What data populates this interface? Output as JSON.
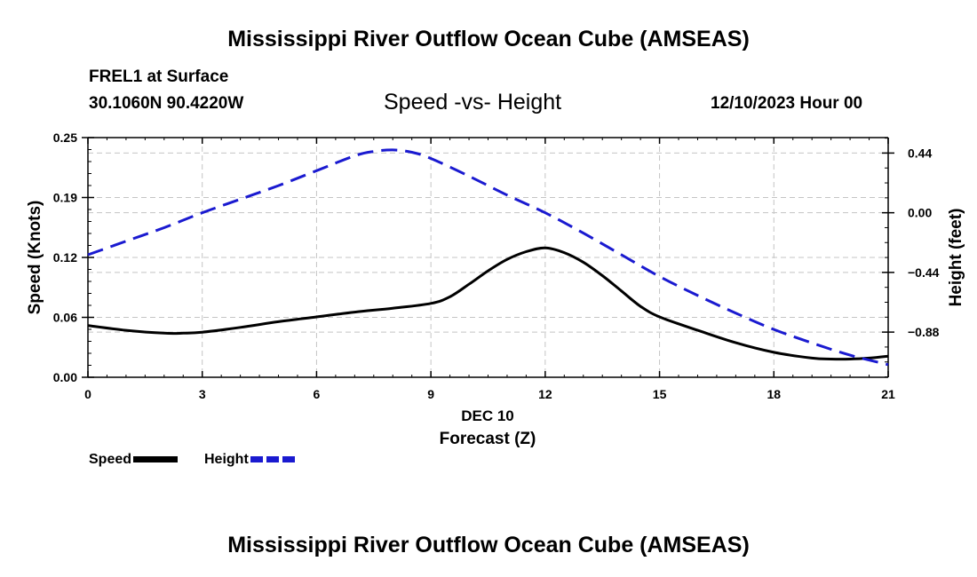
{
  "header": {
    "title": "Mississippi River Outflow Ocean Cube (AMSEAS)",
    "station": "FREL1 at Surface",
    "coords": "30.1060N  90.4220W",
    "subtitle": "Speed -vs- Height",
    "datetime": "12/10/2023 Hour 00"
  },
  "footer": {
    "title": "Mississippi River Outflow Ocean Cube (AMSEAS)"
  },
  "legend": {
    "speed_label": "Speed",
    "height_label": "Height"
  },
  "colors": {
    "speed": "#000000",
    "height": "#1a1ad0",
    "grid": "#c4c4c4"
  },
  "chart_data": {
    "type": "line",
    "xlabel": "Forecast (Z)",
    "xsublabel": "DEC 10",
    "xlim": [
      0,
      21
    ],
    "xticks": [
      0,
      3,
      6,
      9,
      12,
      15,
      18,
      21
    ],
    "xtick_labels": [
      "0",
      "3",
      "6",
      "9",
      "12",
      "15",
      "18",
      "21"
    ],
    "ylabel_left": "Speed (Knots)",
    "ylim_left": [
      0,
      0.25
    ],
    "yticks_left": [
      0,
      0.0625,
      0.125,
      0.1875,
      0.25
    ],
    "ytick_labels_left": [
      "0.00",
      "0.06",
      "0.12",
      "0.19",
      "0.25"
    ],
    "ylabel_right": "Height (feet)",
    "ylim_right": [
      -1.213,
      0.554
    ],
    "yticks_right": [
      -0.88,
      -0.44,
      0.0,
      0.44
    ],
    "ytick_labels_right": [
      "−0.88",
      "−0.44",
      "0.00",
      "0.44"
    ],
    "grid": true,
    "series": [
      {
        "name": "Speed",
        "axis": "left",
        "style": "solid",
        "x": [
          0,
          1,
          2,
          2.5,
          3,
          4,
          5,
          6,
          7,
          8,
          9,
          9.5,
          10,
          10.5,
          11,
          11.5,
          12,
          12.5,
          13,
          13.5,
          14,
          14.5,
          15,
          16,
          17,
          18,
          19,
          19.5,
          20,
          20.5,
          21
        ],
        "values": [
          0.054,
          0.049,
          0.046,
          0.046,
          0.047,
          0.052,
          0.058,
          0.063,
          0.068,
          0.072,
          0.077,
          0.084,
          0.097,
          0.111,
          0.123,
          0.131,
          0.135,
          0.13,
          0.12,
          0.106,
          0.09,
          0.074,
          0.063,
          0.049,
          0.036,
          0.026,
          0.02,
          0.019,
          0.019,
          0.02,
          0.022
        ]
      },
      {
        "name": "Height",
        "axis": "right",
        "style": "dashed",
        "x": [
          0,
          1,
          2,
          3,
          4,
          5,
          6,
          7,
          7.5,
          8,
          8.5,
          9,
          10,
          11,
          12,
          13,
          14,
          15,
          16,
          17,
          18,
          19,
          20,
          21
        ],
        "values": [
          -0.31,
          -0.21,
          -0.11,
          0.0,
          0.1,
          0.2,
          0.31,
          0.42,
          0.452,
          0.463,
          0.446,
          0.4,
          0.27,
          0.13,
          0.0,
          -0.15,
          -0.31,
          -0.47,
          -0.61,
          -0.74,
          -0.86,
          -0.96,
          -1.05,
          -1.12
        ]
      }
    ]
  }
}
